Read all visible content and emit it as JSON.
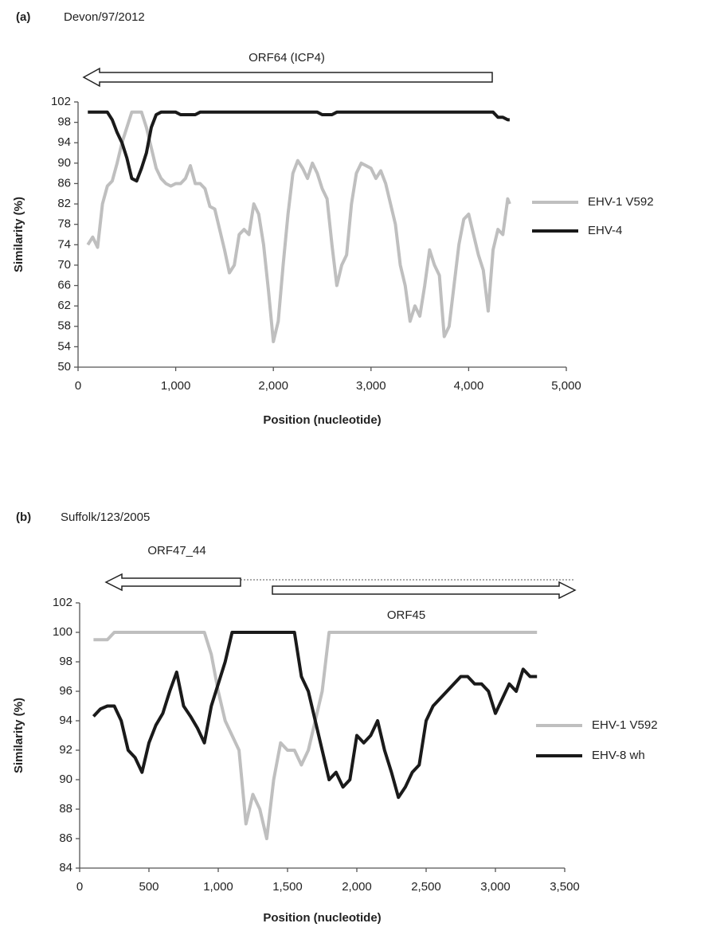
{
  "chart_data": [
    {
      "type": "line",
      "panel": "(a)",
      "title": "Devon/97/2012",
      "annotations": [
        "ORF64 (ICP4)"
      ],
      "xlabel": "Position (nucleotide)",
      "ylabel": "Similarity (%)",
      "x": [
        100,
        150,
        200,
        250,
        300,
        350,
        400,
        450,
        500,
        550,
        600,
        650,
        700,
        750,
        800,
        850,
        900,
        950,
        1000,
        1050,
        1100,
        1150,
        1200,
        1250,
        1300,
        1350,
        1400,
        1450,
        1500,
        1550,
        1600,
        1650,
        1700,
        1750,
        1800,
        1850,
        1900,
        1950,
        2000,
        2050,
        2100,
        2150,
        2200,
        2250,
        2300,
        2350,
        2400,
        2450,
        2500,
        2550,
        2600,
        2650,
        2700,
        2750,
        2800,
        2850,
        2900,
        2950,
        3000,
        3050,
        3100,
        3150,
        3200,
        3250,
        3300,
        3350,
        3400,
        3450,
        3500,
        3550,
        3600,
        3650,
        3700,
        3750,
        3800,
        3850,
        3900,
        3950,
        4000,
        4050,
        4100,
        4150,
        4200,
        4250,
        4300,
        4350,
        4400,
        4420
      ],
      "series": [
        {
          "name": "EHV-1 V592",
          "color": "#bfbfbf",
          "values": [
            74,
            75.5,
            73.5,
            82,
            85.5,
            86.5,
            90,
            94,
            97,
            100,
            100,
            100,
            97,
            93,
            89,
            87,
            86,
            85.5,
            86,
            86,
            87,
            89.5,
            86,
            86,
            85,
            81.5,
            81,
            77,
            73,
            68.5,
            70,
            76,
            77,
            76,
            82,
            80,
            74,
            65,
            55,
            59,
            70,
            80,
            88,
            90.5,
            89,
            87,
            90,
            88,
            85,
            83,
            74,
            66,
            70,
            72,
            82,
            88,
            90,
            89.5,
            89,
            87,
            88.5,
            86,
            82,
            78,
            70,
            66,
            59,
            62,
            60,
            66,
            73,
            70,
            68,
            56,
            58,
            66,
            74,
            79,
            80,
            76,
            72,
            69,
            61,
            73,
            77,
            76,
            83,
            82
          ]
        },
        {
          "name": "EHV-4",
          "color": "#1a1a1a",
          "values": [
            100,
            100,
            100,
            100,
            100,
            98.5,
            96,
            94,
            91,
            87,
            86.5,
            89,
            92,
            97,
            99.5,
            100,
            100,
            100,
            100,
            99.5,
            99.5,
            99.5,
            99.5,
            100,
            100,
            100,
            100,
            100,
            100,
            100,
            100,
            100,
            100,
            100,
            100,
            100,
            100,
            100,
            100,
            100,
            100,
            100,
            100,
            100,
            100,
            100,
            100,
            100,
            99.5,
            99.5,
            99.5,
            100,
            100,
            100,
            100,
            100,
            100,
            100,
            100,
            100,
            100,
            100,
            100,
            100,
            100,
            100,
            100,
            100,
            100,
            100,
            100,
            100,
            100,
            100,
            100,
            100,
            100,
            100,
            100,
            100,
            100,
            100,
            100,
            100,
            99,
            99,
            98.5,
            98.5
          ]
        }
      ],
      "xlim": [
        0,
        5000
      ],
      "ylim": [
        50,
        102
      ],
      "xticks": [
        0,
        {
          "value": 1000,
          "label": "1,000"
        },
        {
          "value": 2000,
          "label": "2,000"
        },
        {
          "value": 3000,
          "label": "3,000"
        },
        {
          "value": 4000,
          "label": "4,000"
        },
        {
          "value": 5000,
          "label": "5,000"
        }
      ],
      "yticks": [
        50,
        54,
        58,
        62,
        66,
        70,
        74,
        78,
        82,
        86,
        90,
        94,
        98,
        102
      ],
      "legend": "right"
    },
    {
      "type": "line",
      "panel": "(b)",
      "title": "Suffolk/123/2005",
      "annotations": [
        "ORF47_44",
        "ORF45"
      ],
      "xlabel": "Position (nucleotide)",
      "ylabel": "Similarity (%)",
      "x": [
        100,
        150,
        200,
        250,
        300,
        350,
        400,
        450,
        500,
        550,
        600,
        650,
        700,
        750,
        800,
        850,
        900,
        950,
        1000,
        1050,
        1100,
        1150,
        1200,
        1250,
        1300,
        1350,
        1400,
        1450,
        1500,
        1550,
        1600,
        1650,
        1700,
        1750,
        1800,
        1850,
        1900,
        1950,
        2000,
        2050,
        2100,
        2150,
        2200,
        2250,
        2300,
        2350,
        2400,
        2450,
        2500,
        2550,
        2600,
        2650,
        2700,
        2750,
        2800,
        2850,
        2900,
        2950,
        3000,
        3050,
        3100,
        3150,
        3200,
        3250,
        3300
      ],
      "series": [
        {
          "name": "EHV-1 V592",
          "color": "#bfbfbf",
          "values": [
            99.5,
            99.5,
            99.5,
            100,
            100,
            100,
            100,
            100,
            100,
            100,
            100,
            100,
            100,
            100,
            100,
            100,
            100,
            98.5,
            96,
            94,
            93,
            92,
            87,
            89,
            88,
            86,
            90,
            92.5,
            92,
            92,
            91,
            92,
            94,
            96,
            100,
            100,
            100,
            100,
            100,
            100,
            100,
            100,
            100,
            100,
            100,
            100,
            100,
            100,
            100,
            100,
            100,
            100,
            100,
            100,
            100,
            100,
            100,
            100,
            100,
            100,
            100,
            100,
            100,
            100,
            100
          ]
        },
        {
          "name": "EHV-8 wh",
          "color": "#1a1a1a",
          "values": [
            94.3,
            94.8,
            95,
            95,
            94,
            92,
            91.5,
            90.5,
            92.5,
            93.7,
            94.5,
            96,
            97.3,
            95,
            94.3,
            93.5,
            92.5,
            95,
            96.5,
            98,
            100,
            100,
            100,
            100,
            100,
            100,
            100,
            100,
            100,
            100,
            97,
            96,
            94,
            92,
            90,
            90.5,
            89.5,
            90,
            93,
            92.5,
            93,
            94,
            92,
            90.5,
            88.8,
            89.5,
            90.5,
            91,
            94,
            95,
            95.5,
            96,
            96.5,
            97,
            97,
            96.5,
            96.5,
            96,
            94.5,
            95.5,
            96.5,
            96,
            97.5,
            97,
            97
          ]
        }
      ],
      "xlim": [
        0,
        3500
      ],
      "ylim": [
        84,
        102
      ],
      "xticks": [
        0,
        500,
        {
          "value": 1000,
          "label": "1,000"
        },
        {
          "value": 1500,
          "label": "1,500"
        },
        {
          "value": 2000,
          "label": "2,000"
        },
        {
          "value": 2500,
          "label": "2,500"
        },
        {
          "value": 3000,
          "label": "3,000"
        },
        {
          "value": 3500,
          "label": "3,500"
        }
      ],
      "yticks": [
        84,
        86,
        88,
        90,
        92,
        94,
        96,
        98,
        100,
        102
      ],
      "legend": "right"
    }
  ]
}
